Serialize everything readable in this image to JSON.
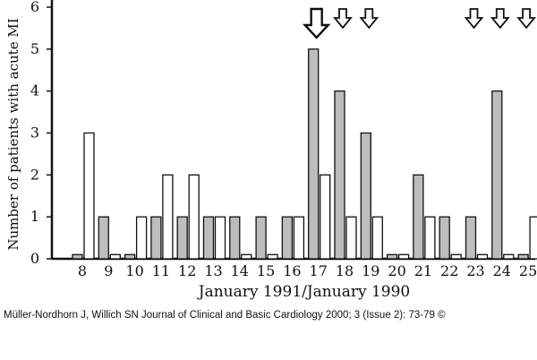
{
  "chart_data": {
    "type": "bar",
    "title": "",
    "xlabel": "January 1991/January 1990",
    "ylabel": "Number of patients with acute MI",
    "ylim": [
      0,
      6
    ],
    "yticks": [
      "0",
      "1",
      "2",
      "3",
      "4",
      "5",
      "6"
    ],
    "categories": [
      "8",
      "9",
      "10",
      "11",
      "12",
      "13",
      "14",
      "15",
      "16",
      "17",
      "18",
      "19",
      "20",
      "21",
      "22",
      "23",
      "24",
      "25"
    ],
    "series": [
      {
        "name": "January 1991",
        "color": "#bdbdbd",
        "values": [
          0.1,
          1,
          0.1,
          1,
          1,
          1,
          1,
          1,
          1,
          5,
          4,
          3,
          0.1,
          2,
          1,
          1,
          4,
          0.1
        ]
      },
      {
        "name": "January 1990",
        "color": "#ffffff",
        "values": [
          3,
          0.1,
          1,
          2,
          2,
          1,
          0.1,
          0.1,
          1,
          2,
          1,
          1,
          0.1,
          1,
          0.1,
          0.1,
          0.1,
          1
        ]
      }
    ],
    "arrows": [
      {
        "category": "17",
        "size": "large"
      },
      {
        "category": "18",
        "size": "small"
      },
      {
        "category": "19",
        "size": "small"
      },
      {
        "category": "23",
        "size": "small"
      },
      {
        "category": "24",
        "size": "small"
      },
      {
        "category": "25",
        "size": "small"
      }
    ]
  },
  "credit": "Müller-Nordhorn J, Willich SN Journal of Clinical and Basic Cardiology 2000; 3 (Issue 2): 73-79 ©"
}
